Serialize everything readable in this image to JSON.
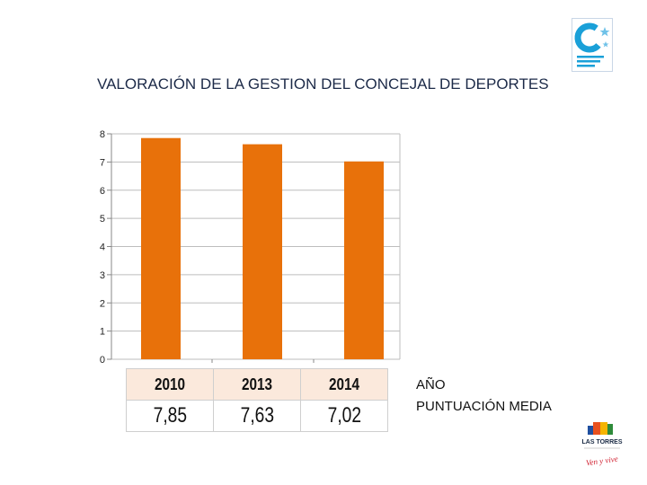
{
  "chart_data": {
    "type": "bar",
    "title": "VALORACIÓN DE LA GESTION DEL CONCEJAL DE DEPORTES",
    "categories": [
      "2010",
      "2013",
      "2014"
    ],
    "values": [
      7.85,
      7.63,
      7.02
    ],
    "value_labels": [
      "7,85",
      "7,63",
      "7,02"
    ],
    "ylim": [
      0,
      8
    ],
    "yticks": [
      "0",
      "1",
      "2",
      "3",
      "4",
      "5",
      "6",
      "7",
      "8"
    ],
    "xlabel": "",
    "ylabel": "",
    "grid": true,
    "bar_color": "#e8710a"
  },
  "table": {
    "row_labels": [
      "AÑO",
      "PUNTUACIÓN MEDIA"
    ],
    "year_color": "#fbe9dc"
  },
  "logos": {
    "bottom_text": "LAS TORRES",
    "bottom_slogan": "Ven y vive"
  }
}
